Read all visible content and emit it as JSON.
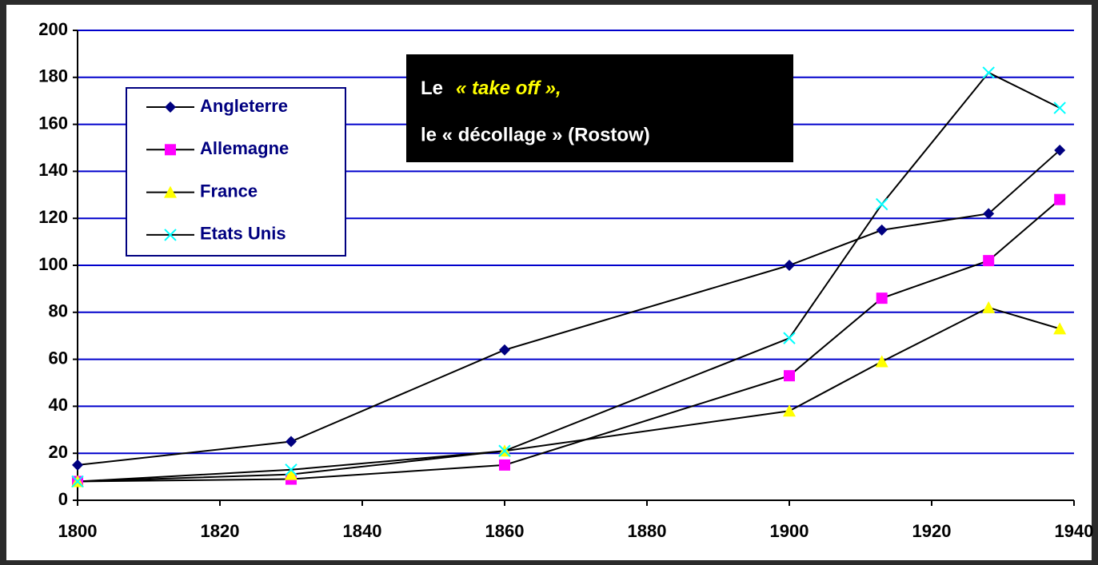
{
  "chart_data": {
    "type": "line",
    "x": [
      1800,
      1830,
      1860,
      1900,
      1913,
      1928,
      1938
    ],
    "series": [
      {
        "name": "Angleterre",
        "color": "#000080",
        "marker": "diamond",
        "values": [
          15,
          25,
          64,
          100,
          115,
          122,
          149
        ]
      },
      {
        "name": "Allemagne",
        "color": "#ff00ff",
        "marker": "square",
        "values": [
          8,
          9,
          15,
          53,
          86,
          102,
          128
        ]
      },
      {
        "name": "France",
        "color": "#ffff00",
        "marker": "triangle",
        "values": [
          8,
          11,
          21,
          38,
          59,
          82,
          73
        ]
      },
      {
        "name": "Etats Unis",
        "color": "#00ffff",
        "marker": "x",
        "values": [
          8,
          13,
          21,
          69,
          126,
          182,
          167
        ]
      }
    ],
    "line_color": "#000000",
    "xlim": [
      1800,
      1940
    ],
    "xticks": [
      1800,
      1820,
      1840,
      1860,
      1880,
      1900,
      1920,
      1940
    ],
    "ylim": [
      0,
      200
    ],
    "yticks": [
      0,
      20,
      40,
      60,
      80,
      100,
      120,
      140,
      160,
      180,
      200
    ],
    "grid": true,
    "grid_color": "#0000cc",
    "annotations": [
      "Le",
      "« take off »,",
      "le « décollage » (Rostow)"
    ]
  }
}
